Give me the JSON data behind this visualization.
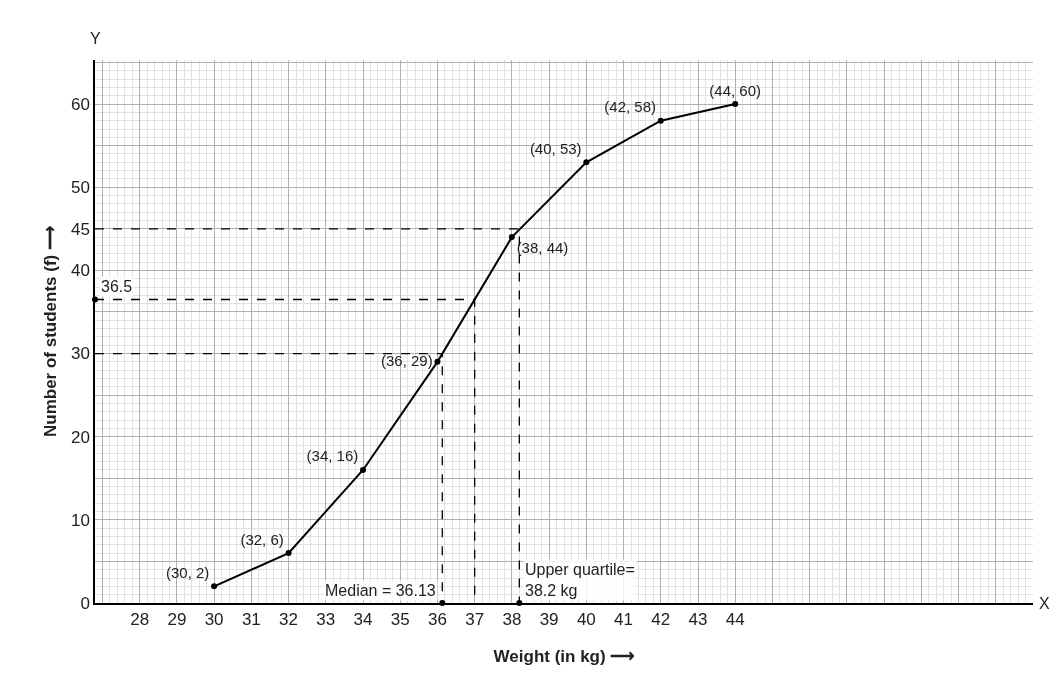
{
  "chart_data": {
    "type": "line",
    "xlabel": "Weight (in kg) ⟶",
    "ylabel": "Number of students (f) ⟶",
    "xlim": [
      26.8,
      52
    ],
    "ylim": [
      0,
      65.3
    ],
    "xticks": [
      28,
      29,
      30,
      31,
      32,
      33,
      34,
      35,
      36,
      37,
      38,
      39,
      40,
      41,
      42,
      43,
      44,
      {
        "value": 27,
        "label": null
      },
      {
        "value": 45,
        "label": null
      },
      {
        "value": 46,
        "label": null
      },
      {
        "value": 47,
        "label": null
      },
      {
        "value": 48,
        "label": null
      },
      {
        "value": 49,
        "label": null
      },
      {
        "value": 50,
        "label": null
      },
      {
        "value": 51,
        "label": null
      }
    ],
    "yticks": [
      0,
      10,
      20,
      30,
      40,
      45,
      50,
      60,
      {
        "value": 5,
        "label": null
      },
      {
        "value": 15,
        "label": null
      },
      {
        "value": 25,
        "label": null
      },
      {
        "value": 35,
        "label": null
      },
      {
        "value": 55,
        "label": null
      },
      {
        "value": 65,
        "label": null
      }
    ],
    "grid": true,
    "marker": "circle",
    "line_style": "solid",
    "series": [
      {
        "color": "#000000",
        "x": [
          30,
          32,
          34,
          36,
          38,
          40,
          42,
          44
        ],
        "values": [
          2,
          6,
          16,
          29,
          44,
          53,
          58,
          60
        ],
        "value_labels": [
          "(30, 2)",
          "(32, 6)",
          "(34, 16)",
          "(36, 29)",
          "(38, 44)",
          "(40, 53)",
          "(42, 58)",
          "(44, 60)"
        ]
      },
      {
        "color": "#000000",
        "type": "line",
        "line_style": "dashed",
        "marker": "none",
        "x": [
          26.8,
          36.13,
          36.13
        ],
        "values": [
          30,
          30,
          0
        ]
      },
      {
        "color": "#000000",
        "type": "line",
        "line_style": "dashed",
        "marker": "none",
        "x": [
          26.8,
          37,
          37
        ],
        "values": [
          36.5,
          36.5,
          0
        ]
      },
      {
        "color": "#000000",
        "type": "line",
        "line_style": "dashed",
        "marker": "none",
        "x": [
          26.8,
          38.2,
          38.2
        ],
        "values": [
          45,
          45,
          0
        ]
      },
      {
        "color": "#000000",
        "type": "scatter",
        "marker": "circle",
        "x": [
          36.13,
          38.2,
          26.8
        ],
        "values": [
          0,
          0,
          36.5
        ]
      }
    ],
    "annotations": [
      "Y",
      "X",
      {
        "text": "36.5",
        "x": 26.8,
        "y": 36.5
      },
      {
        "text": "Median = 36.13",
        "x": 36.13,
        "y": 0
      },
      {
        "text": "Upper quartile=\n38.2 kg",
        "x": 38.2,
        "y": 0
      }
    ]
  }
}
